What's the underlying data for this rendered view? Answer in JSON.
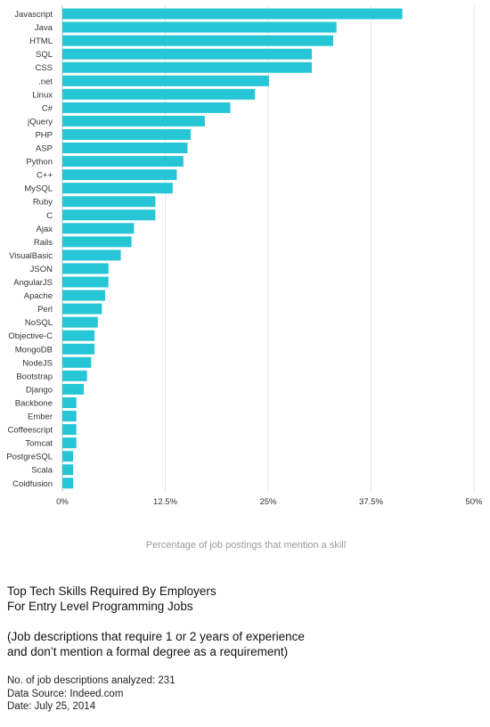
{
  "chart_data": {
    "type": "bar",
    "orientation": "horizontal",
    "categories": [
      "Javascript",
      "Java",
      "HTML",
      "SQL",
      "CSS",
      ".net",
      "Linux",
      "C#",
      "jQuery",
      "PHP",
      "ASP",
      "Python",
      "C++",
      "MySQL",
      "Ruby",
      "C",
      "Ajax",
      "Rails",
      "VisualBasic",
      "JSON",
      "AngularJS",
      "Apache",
      "Perl",
      "NoSQL",
      "Objective-C",
      "MongoDB",
      "NodeJS",
      "Bootstrap",
      "Django",
      "Backbone",
      "Ember",
      "Coffeescript",
      "Tomcat",
      "PostgreSQL",
      "Scala",
      "Coldfusion"
    ],
    "values": [
      41.3,
      33.3,
      32.9,
      30.3,
      30.3,
      25.1,
      23.4,
      20.4,
      17.3,
      15.6,
      15.2,
      14.7,
      13.9,
      13.4,
      11.3,
      11.3,
      8.7,
      8.4,
      7.1,
      5.6,
      5.6,
      5.2,
      4.8,
      4.3,
      3.9,
      3.9,
      3.5,
      3.0,
      2.6,
      1.7,
      1.7,
      1.7,
      1.7,
      1.3,
      1.3,
      1.3
    ],
    "xlim": [
      0,
      50
    ],
    "xticks": [
      "0%",
      "12.5%",
      "25%",
      "37.5%",
      "50%"
    ],
    "xlabel": "Percentage of job postings that mention a skill",
    "ylabel": "",
    "grid": true,
    "color": "#26c6d6"
  },
  "notes": {
    "title_line1": "Top Tech Skills Required By Employers",
    "title_line2": "For Entry Level Programming Jobs",
    "subtitle_line1": "(Job descriptions that require 1 or 2 years of experience",
    "subtitle_line2": "and don’t mention a formal degree as a requirement)",
    "analyzed": "No. of job descriptions analyzed: 231",
    "source": "Data Source: Indeed.com",
    "date": "Date: July 25, 2014"
  }
}
